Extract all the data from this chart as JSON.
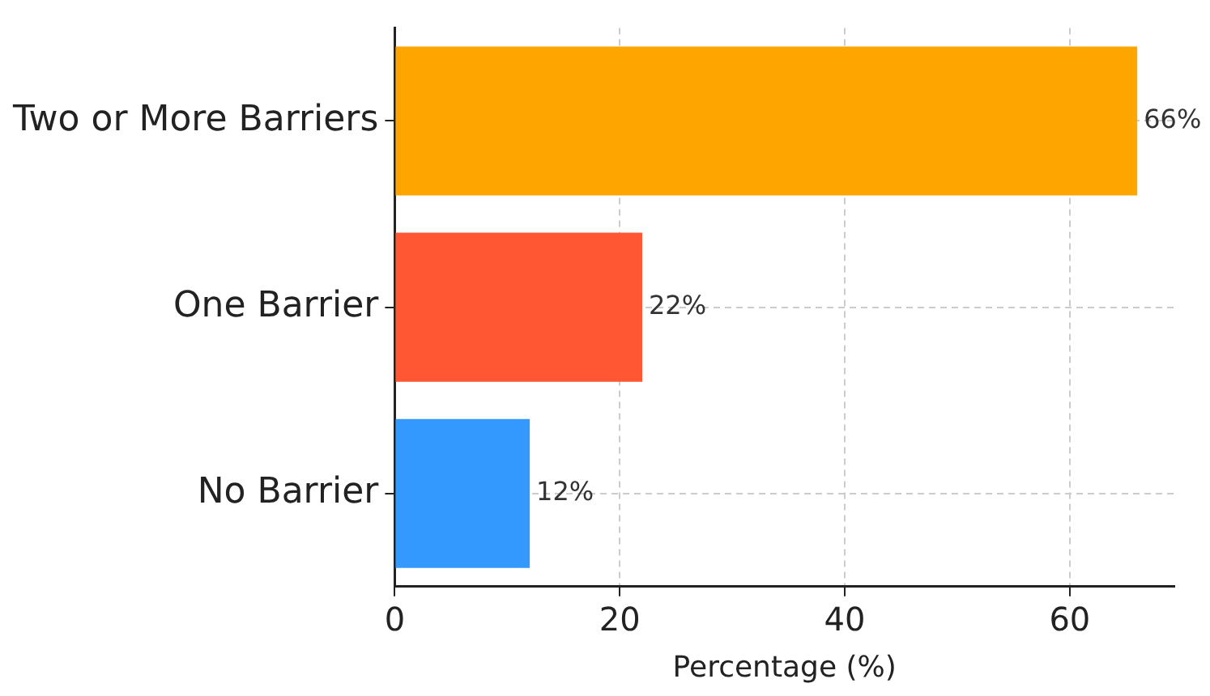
{
  "chart_data": {
    "type": "bar",
    "orientation": "horizontal",
    "xlabel": "Percentage (%)",
    "categories": [
      "Two or More Barriers",
      "One Barrier",
      "No Barrier"
    ],
    "values": [
      66,
      22,
      12
    ],
    "colors": [
      "#ffa500",
      "#ff5733",
      "#3399ff"
    ],
    "value_labels": [
      "66%",
      "22%",
      "12%"
    ],
    "xlim": [
      0,
      69.3
    ],
    "xticks": [
      0,
      20,
      40,
      60
    ],
    "grid": true
  }
}
